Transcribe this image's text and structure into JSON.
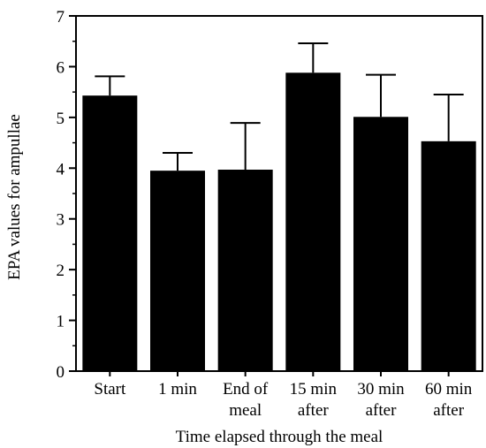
{
  "chart_data": {
    "type": "bar",
    "title": "",
    "xlabel": "Time elapsed through the meal",
    "ylabel": "EPA values for ampullae",
    "ylim": [
      0,
      7
    ],
    "yticks": [
      0,
      1,
      2,
      3,
      4,
      5,
      6,
      7
    ],
    "categories": [
      [
        "Start"
      ],
      [
        "1 min"
      ],
      [
        "End of",
        "meal"
      ],
      [
        "15 min",
        "after"
      ],
      [
        "30 min",
        "after"
      ],
      [
        "60 min",
        "after"
      ]
    ],
    "series": [
      {
        "values": [
          5.43,
          3.95,
          3.97,
          5.88,
          5.01,
          4.53
        ],
        "error_upper": [
          0.38,
          0.35,
          0.92,
          0.58,
          0.83,
          0.92
        ]
      }
    ],
    "grid": false,
    "bar_color": "#000000"
  }
}
